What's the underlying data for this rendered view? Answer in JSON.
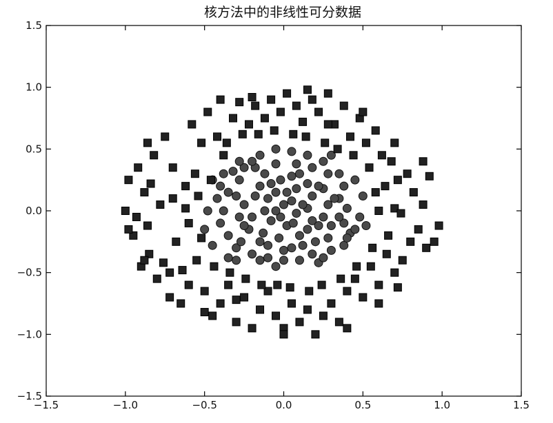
{
  "chart_data": {
    "type": "scatter",
    "title": "核方法中的非线性可分数据",
    "xlabel": "",
    "ylabel": "",
    "xlim": [
      -1.5,
      1.5
    ],
    "ylim": [
      -1.5,
      1.5
    ],
    "xticks": [
      -1.5,
      -1.0,
      -0.5,
      0.0,
      0.5,
      1.0,
      1.5
    ],
    "yticks": [
      -1.5,
      -1.0,
      -0.5,
      0.0,
      0.5,
      1.0,
      1.5
    ],
    "xtick_labels": [
      "−1.5",
      "−1.0",
      "−0.5",
      "0.0",
      "0.5",
      "1.0",
      "1.5"
    ],
    "ytick_labels": [
      "−1.5",
      "−1.0",
      "−0.5",
      "0.0",
      "0.5",
      "1.0",
      "1.5"
    ],
    "grid": false,
    "legend": "none",
    "series": [
      {
        "marker": "circle",
        "color": "#4a4a4a",
        "points": [
          [
            -0.45,
            0.25
          ],
          [
            -0.4,
            0.2
          ],
          [
            -0.42,
            0.1
          ],
          [
            -0.38,
            0.0
          ],
          [
            -0.4,
            -0.1
          ],
          [
            -0.35,
            -0.2
          ],
          [
            -0.3,
            -0.3
          ],
          [
            -0.35,
            -0.38
          ],
          [
            -0.25,
            0.35
          ],
          [
            -0.28,
            0.25
          ],
          [
            -0.3,
            0.12
          ],
          [
            -0.25,
            0.05
          ],
          [
            -0.28,
            -0.05
          ],
          [
            -0.22,
            -0.15
          ],
          [
            -0.27,
            -0.25
          ],
          [
            -0.2,
            -0.35
          ],
          [
            -0.15,
            0.45
          ],
          [
            -0.18,
            0.35
          ],
          [
            -0.12,
            0.3
          ],
          [
            -0.15,
            0.2
          ],
          [
            -0.1,
            0.1
          ],
          [
            -0.12,
            0.0
          ],
          [
            -0.08,
            -0.08
          ],
          [
            -0.13,
            -0.18
          ],
          [
            -0.1,
            -0.28
          ],
          [
            -0.15,
            -0.4
          ],
          [
            -0.05,
            0.5
          ],
          [
            -0.05,
            0.38
          ],
          [
            -0.02,
            0.25
          ],
          [
            -0.05,
            0.15
          ],
          [
            0.0,
            0.05
          ],
          [
            -0.02,
            -0.05
          ],
          [
            0.02,
            -0.12
          ],
          [
            -0.03,
            -0.22
          ],
          [
            0.0,
            -0.32
          ],
          [
            -0.05,
            -0.45
          ],
          [
            0.05,
            0.48
          ],
          [
            0.08,
            0.38
          ],
          [
            0.05,
            0.28
          ],
          [
            0.08,
            0.18
          ],
          [
            0.05,
            0.08
          ],
          [
            0.08,
            -0.02
          ],
          [
            0.06,
            -0.1
          ],
          [
            0.1,
            -0.2
          ],
          [
            0.05,
            -0.3
          ],
          [
            0.1,
            -0.4
          ],
          [
            0.15,
            0.45
          ],
          [
            0.18,
            0.35
          ],
          [
            0.15,
            0.22
          ],
          [
            0.18,
            0.12
          ],
          [
            0.15,
            0.02
          ],
          [
            0.18,
            -0.08
          ],
          [
            0.15,
            -0.15
          ],
          [
            0.2,
            -0.25
          ],
          [
            0.18,
            -0.35
          ],
          [
            0.22,
            -0.42
          ],
          [
            0.25,
            0.4
          ],
          [
            0.28,
            0.3
          ],
          [
            0.25,
            0.18
          ],
          [
            0.28,
            0.05
          ],
          [
            0.25,
            -0.05
          ],
          [
            0.3,
            -0.12
          ],
          [
            0.28,
            -0.22
          ],
          [
            0.3,
            -0.32
          ],
          [
            0.35,
            0.3
          ],
          [
            0.38,
            0.2
          ],
          [
            0.35,
            0.1
          ],
          [
            0.4,
            0.02
          ],
          [
            0.38,
            -0.1
          ],
          [
            0.42,
            -0.18
          ],
          [
            0.38,
            -0.28
          ],
          [
            0.45,
            -0.15
          ],
          [
            0.48,
            -0.05
          ],
          [
            0.5,
            0.12
          ],
          [
            0.45,
            0.25
          ],
          [
            0.52,
            -0.12
          ],
          [
            -0.48,
            0.0
          ],
          [
            -0.5,
            -0.15
          ],
          [
            -0.45,
            -0.28
          ],
          [
            -0.32,
            0.32
          ],
          [
            -0.2,
            0.4
          ],
          [
            -0.35,
            0.15
          ],
          [
            -0.2,
            -0.05
          ],
          [
            -0.05,
            0.0
          ],
          [
            0.02,
            0.15
          ],
          [
            0.12,
            0.05
          ],
          [
            -0.08,
            0.22
          ],
          [
            0.1,
            0.3
          ],
          [
            0.22,
            0.2
          ],
          [
            0.32,
            0.1
          ],
          [
            -0.18,
            0.12
          ],
          [
            -0.25,
            -0.12
          ],
          [
            -0.15,
            -0.25
          ],
          [
            0.12,
            -0.28
          ],
          [
            0.22,
            -0.12
          ],
          [
            0.35,
            -0.05
          ],
          [
            -0.38,
            0.3
          ],
          [
            -0.3,
            -0.4
          ],
          [
            0.0,
            -0.4
          ],
          [
            0.25,
            -0.38
          ],
          [
            0.4,
            -0.22
          ],
          [
            -0.1,
            -0.38
          ],
          [
            0.3,
            0.45
          ],
          [
            -0.28,
            0.4
          ]
        ]
      },
      {
        "marker": "square",
        "color": "#222222",
        "points": [
          [
            -1.0,
            0.0
          ],
          [
            -0.98,
            0.25
          ],
          [
            -0.95,
            -0.2
          ],
          [
            -0.92,
            0.35
          ],
          [
            -0.9,
            -0.45
          ],
          [
            -0.88,
            0.15
          ],
          [
            -0.85,
            -0.35
          ],
          [
            -0.82,
            0.45
          ],
          [
            -0.8,
            -0.55
          ],
          [
            -0.78,
            0.05
          ],
          [
            -0.75,
            0.6
          ],
          [
            -0.72,
            -0.5
          ],
          [
            -0.7,
            0.35
          ],
          [
            -0.68,
            -0.25
          ],
          [
            -0.65,
            -0.75
          ],
          [
            -0.62,
            0.2
          ],
          [
            -0.6,
            -0.6
          ],
          [
            -0.58,
            0.7
          ],
          [
            -0.55,
            -0.4
          ],
          [
            -0.52,
            0.55
          ],
          [
            -0.5,
            -0.65
          ],
          [
            -0.48,
            0.8
          ],
          [
            -0.45,
            -0.85
          ],
          [
            -0.42,
            0.6
          ],
          [
            -0.4,
            -0.75
          ],
          [
            -0.38,
            0.45
          ],
          [
            -0.35,
            -0.6
          ],
          [
            -0.32,
            0.75
          ],
          [
            -0.3,
            -0.9
          ],
          [
            -0.28,
            0.88
          ],
          [
            -0.25,
            -0.7
          ],
          [
            -0.22,
            0.7
          ],
          [
            -0.2,
            -0.95
          ],
          [
            -0.18,
            0.85
          ],
          [
            -0.15,
            -0.8
          ],
          [
            -0.12,
            0.75
          ],
          [
            -0.1,
            -0.65
          ],
          [
            -0.08,
            0.9
          ],
          [
            -0.05,
            -0.85
          ],
          [
            -0.02,
            0.8
          ],
          [
            0.0,
            -0.95
          ],
          [
            0.02,
            0.95
          ],
          [
            0.05,
            -0.75
          ],
          [
            0.08,
            0.85
          ],
          [
            0.1,
            -0.9
          ],
          [
            0.12,
            0.72
          ],
          [
            0.15,
            -0.8
          ],
          [
            0.18,
            0.9
          ],
          [
            0.2,
            -1.0
          ],
          [
            0.22,
            0.8
          ],
          [
            0.25,
            -0.85
          ],
          [
            0.28,
            0.95
          ],
          [
            0.3,
            -0.75
          ],
          [
            0.32,
            0.7
          ],
          [
            0.35,
            -0.9
          ],
          [
            0.38,
            0.85
          ],
          [
            0.4,
            -0.65
          ],
          [
            0.42,
            0.6
          ],
          [
            0.45,
            -0.55
          ],
          [
            0.48,
            0.75
          ],
          [
            0.5,
            -0.7
          ],
          [
            0.52,
            0.55
          ],
          [
            0.55,
            -0.45
          ],
          [
            0.58,
            0.65
          ],
          [
            0.6,
            -0.6
          ],
          [
            0.62,
            0.45
          ],
          [
            0.65,
            -0.35
          ],
          [
            0.68,
            0.4
          ],
          [
            0.7,
            -0.5
          ],
          [
            0.72,
            0.25
          ],
          [
            0.75,
            -0.4
          ],
          [
            0.78,
            0.3
          ],
          [
            0.8,
            -0.25
          ],
          [
            0.82,
            0.15
          ],
          [
            0.85,
            -0.15
          ],
          [
            0.88,
            0.05
          ],
          [
            0.9,
            -0.3
          ],
          [
            0.92,
            0.28
          ],
          [
            0.95,
            -0.25
          ],
          [
            0.98,
            -0.12
          ],
          [
            -0.98,
            -0.15
          ],
          [
            -0.93,
            -0.05
          ],
          [
            -0.86,
            -0.12
          ],
          [
            -0.84,
            0.22
          ],
          [
            -0.76,
            -0.42
          ],
          [
            -0.7,
            0.1
          ],
          [
            -0.64,
            -0.48
          ],
          [
            -0.56,
            0.3
          ],
          [
            -0.46,
            0.25
          ],
          [
            -0.44,
            -0.45
          ],
          [
            -0.36,
            0.55
          ],
          [
            -0.34,
            -0.5
          ],
          [
            -0.26,
            0.62
          ],
          [
            -0.24,
            -0.55
          ],
          [
            -0.16,
            0.62
          ],
          [
            -0.14,
            -0.6
          ],
          [
            -0.06,
            0.65
          ],
          [
            -0.04,
            -0.6
          ],
          [
            0.06,
            0.62
          ],
          [
            0.04,
            -0.62
          ],
          [
            0.14,
            0.6
          ],
          [
            0.16,
            -0.65
          ],
          [
            0.26,
            0.55
          ],
          [
            0.24,
            -0.6
          ],
          [
            0.34,
            0.5
          ],
          [
            0.36,
            -0.55
          ],
          [
            0.44,
            0.45
          ],
          [
            0.46,
            -0.45
          ],
          [
            0.54,
            0.35
          ],
          [
            0.56,
            -0.3
          ],
          [
            0.64,
            0.2
          ],
          [
            0.66,
            -0.2
          ],
          [
            0.7,
            0.02
          ],
          [
            0.74,
            -0.02
          ],
          [
            0.6,
            0.0
          ],
          [
            0.58,
            0.15
          ],
          [
            -0.6,
            -0.1
          ],
          [
            -0.62,
            0.02
          ],
          [
            -0.52,
            -0.22
          ],
          [
            -0.54,
            0.12
          ],
          [
            -0.72,
            -0.7
          ],
          [
            -0.86,
            0.55
          ],
          [
            0.7,
            0.55
          ],
          [
            0.72,
            -0.62
          ],
          [
            0.6,
            -0.75
          ],
          [
            -0.2,
            0.92
          ],
          [
            0.15,
            0.98
          ],
          [
            0.0,
            -1.0
          ],
          [
            -0.4,
            0.9
          ],
          [
            0.4,
            -0.95
          ],
          [
            0.5,
            0.8
          ],
          [
            -0.5,
            -0.82
          ],
          [
            0.88,
            0.4
          ],
          [
            -0.88,
            -0.4
          ],
          [
            0.28,
            0.7
          ],
          [
            -0.3,
            -0.72
          ]
        ]
      }
    ]
  }
}
